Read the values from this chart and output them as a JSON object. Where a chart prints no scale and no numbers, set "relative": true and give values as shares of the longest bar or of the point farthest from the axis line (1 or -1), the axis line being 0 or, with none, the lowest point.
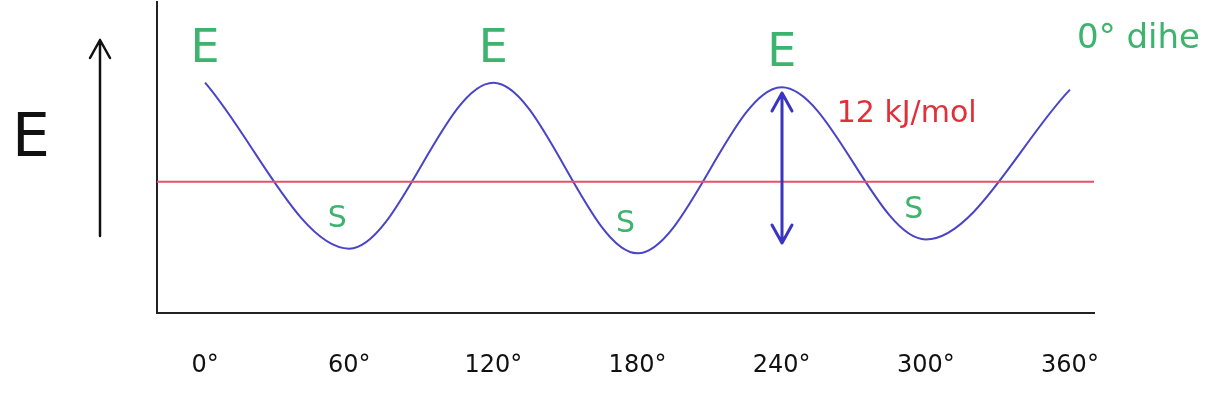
{
  "chart_data": {
    "type": "line",
    "xlabel": null,
    "ylabel": "E",
    "relative": true,
    "x": [
      0,
      60,
      120,
      180,
      240,
      300,
      360
    ],
    "series": [
      {
        "color": "#4a44c8",
        "values": [
          1,
          0.28,
          1,
          0.26,
          0.98,
          0.32,
          0.97
        ]
      }
    ],
    "xlim": [
      -20,
      370
    ],
    "xticks": [
      {
        "value": 0,
        "label": "0°"
      },
      {
        "value": 60,
        "label": "60°"
      },
      {
        "value": 120,
        "label": "120°"
      },
      {
        "value": 180,
        "label": "180°"
      },
      {
        "value": 240,
        "label": "240°"
      },
      {
        "value": 300,
        "label": "300°"
      },
      {
        "value": 360,
        "label": "360°"
      }
    ],
    "ref_lines": [
      {
        "axis": "y",
        "value": 0.57,
        "label": null,
        "color": "#e8506a"
      }
    ],
    "annotations": [
      {
        "text": "E",
        "x": 0,
        "y": 1
      },
      {
        "text": "E",
        "x": 120,
        "y": 1
      },
      {
        "text": "E",
        "x": 240,
        "y": 0.98
      },
      {
        "text": "S",
        "x": 60,
        "y": 0.28
      },
      {
        "text": "S",
        "x": 180,
        "y": 0.26
      },
      {
        "text": "S",
        "x": 300,
        "y": 0.32
      },
      {
        "text": "12 kJ/mol",
        "x": 240,
        "y": 0.98
      },
      "0° dihe"
    ],
    "grid": false,
    "legend": false
  }
}
